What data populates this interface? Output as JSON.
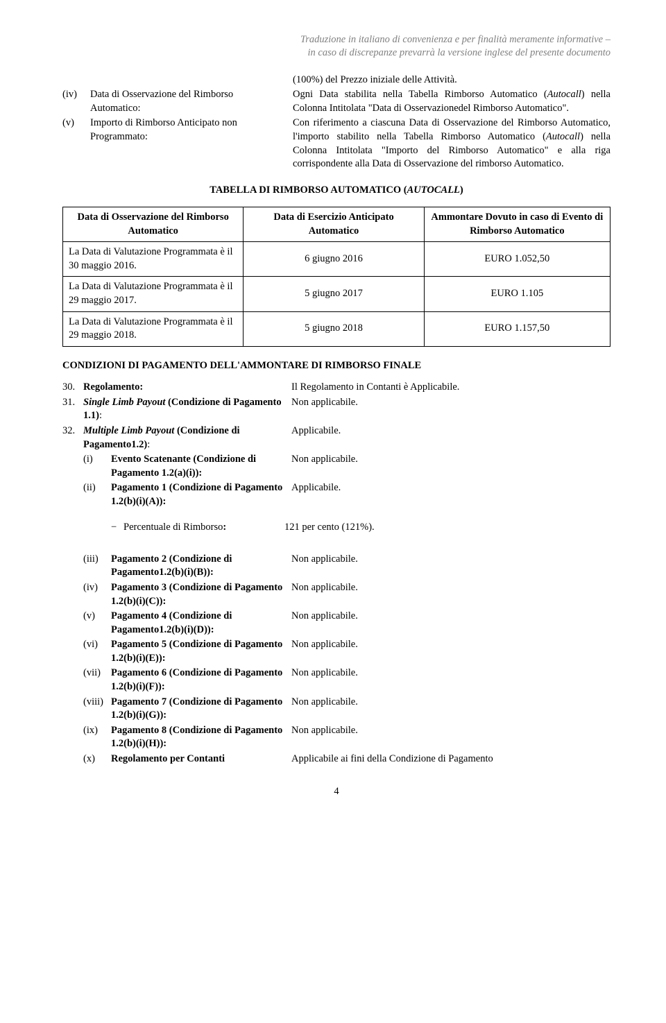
{
  "header": {
    "line1": "Traduzione in italiano di convenienza e per finalità meramente informative –",
    "line2": "in caso di discrepanze prevarrà la versione inglese del presente documento"
  },
  "defs": {
    "iv_num": "(iv)",
    "iv_label": "Data di Osservazione del Rimborso Automatico:",
    "iv_pre": "(100%) del Prezzo iniziale delle Attività.",
    "iv_val_a": "Ogni Data stabilita nella Tabella Rimborso Automatico (",
    "iv_val_i": "Autocall",
    "iv_val_b": ") nella Colonna Intitolata \"Data di Osservazionedel Rimborso Automatico\".",
    "v_num": "(v)",
    "v_label": "Importo di Rimborso Anticipato non Programmato:",
    "v_val_a": "Con riferimento a ciascuna   Data di Osservazione del Rimborso Automatico, l'importo stabilito nella Tabella Rimborso Automatico (",
    "v_val_i": "Autocall",
    "v_val_b": ") nella Colonna Intitolata \"Importo del Rimborso Automatico\" e alla riga corrispondente alla Data di Osservazione del rimborso Automatico."
  },
  "autocall_title_a": "TABELLA DI RIMBORSO AUTOMATICO (",
  "autocall_title_i": "AUTOCALL",
  "autocall_title_b": ")",
  "autocall_table": {
    "h1": "Data di Osservazione del Rimborso Automatico",
    "h2": "Data di Esercizio Anticipato Automatico",
    "h3": "Ammontare Dovuto in caso di Evento di Rimborso Automatico",
    "r1c1": "La Data di Valutazione Programmata è il 30 maggio 2016.",
    "r1c2": "6 giugno 2016",
    "r1c3": "EURO 1.052,50",
    "r2c1": "La Data di Valutazione Programmata è il 29 maggio 2017.",
    "r2c2": "5 giugno 2017",
    "r2c3": "EURO 1.105",
    "r3c1": "La Data di Valutazione Programmata è il 29 maggio 2018.",
    "r3c2": "5 giugno 2018",
    "r3c3": "EURO 1.157,50"
  },
  "cond_heading": "CONDIZIONI DI PAGAMENTO DELL'AMMONTARE DI RIMBORSO FINALE",
  "rows": {
    "r30n": "30.",
    "r30l": "Regolamento:",
    "r30v": "Il Regolamento in Contanti è Applicabile.",
    "r31n": "31.",
    "r31l_a": "Single Limb Payout",
    "r31l_b": " (Condizione di Pagamento 1.1)",
    "r31l_c": ":",
    "r31v": "Non applicabile.",
    "r32n": "32.",
    "r32l_a": "Multiple Limb Payout",
    "r32l_b": " (Condizione di Pagamento1.2)",
    "r32l_c": ":",
    "r32v": "Applicabile.",
    "s1n": "(i)",
    "s1l": "Evento Scatenante (Condizione di Pagamento 1.2(a)(i)):",
    "s1v": "Non applicabile.",
    "s2n": "(ii)",
    "s2l": "Pagamento 1 (Condizione di Pagamento 1.2(b)(i)(A)):",
    "s2v": "Applicabile.",
    "pct_dash": "−",
    "pct_l": "Percentuale di Rimborso",
    "pct_colon": ":",
    "pct_v": "121 per cento (121%).",
    "s3n": "(iii)",
    "s3l": "Pagamento 2 (Condizione di Pagamento1.2(b)(i)(B)):",
    "s3v": "Non applicabile.",
    "s4n": "(iv)",
    "s4l": "Pagamento 3 (Condizione di Pagamento 1.2(b)(i)(C)):",
    "s4v": "Non applicabile.",
    "s5n": "(v)",
    "s5l": "Pagamento 4 (Condizione di Pagamento1.2(b)(i)(D)):",
    "s5v": "Non applicabile.",
    "s6n": "(vi)",
    "s6l": "Pagamento 5 (Condizione di Pagamento 1.2(b)(i)(E)):",
    "s6v": "Non applicabile.",
    "s7n": "(vii)",
    "s7l": "Pagamento 6 (Condizione di Pagamento 1.2(b)(i)(F)):",
    "s7v": "Non applicabile.",
    "s8n": "(viii)",
    "s8l": "Pagamento 7 (Condizione di Pagamento 1.2(b)(i)(G)):",
    "s8v": "Non applicabile.",
    "s9n": "(ix)",
    "s9l": "Pagamento 8 (Condizione di Pagamento 1.2(b)(i)(H)):",
    "s9v": "Non applicabile.",
    "s10n": "(x)",
    "s10l": "Regolamento per Contanti",
    "s10v": "Applicabile ai fini della Condizione di Pagamento"
  },
  "pagenum": "4"
}
